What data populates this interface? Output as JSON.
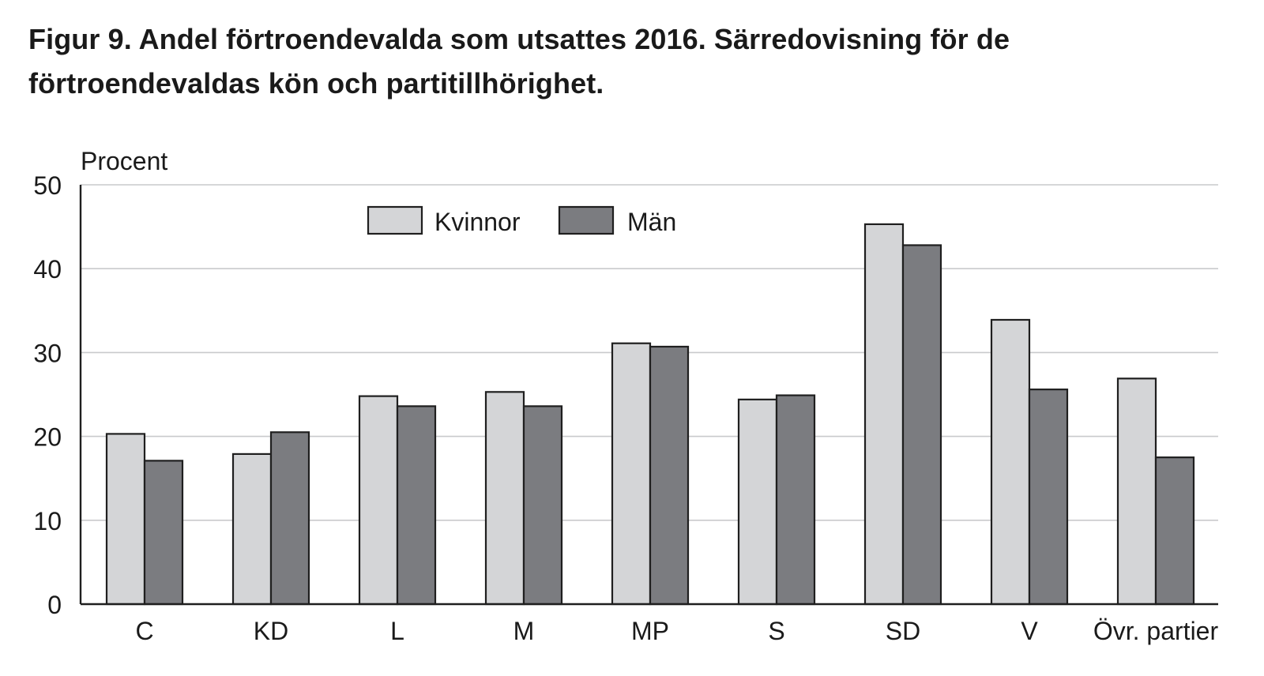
{
  "title_lines": [
    "Figur 9. Andel förtroendevalda som utsattes 2016. Särredovisning för de",
    "förtroendevaldas kön och partitillhörighet."
  ],
  "chart_data": {
    "type": "bar",
    "title": "Figur 9. Andel förtroendevalda som utsattes 2016. Särredovisning för de förtroendevaldas kön och partitillhörighet.",
    "ylabel": "Procent",
    "xlabel": "",
    "ylim": [
      0,
      50
    ],
    "yticks": [
      0,
      10,
      20,
      30,
      40,
      50
    ],
    "grid": true,
    "legend_position": "top-left",
    "categories": [
      "C",
      "KD",
      "L",
      "M",
      "MP",
      "S",
      "SD",
      "V",
      "Övr. partier"
    ],
    "series": [
      {
        "name": "Kvinnor",
        "color": "#d4d5d7",
        "values": [
          20.3,
          17.9,
          24.8,
          25.3,
          31.1,
          24.4,
          45.3,
          33.9,
          26.9
        ]
      },
      {
        "name": "Män",
        "color": "#7b7c80",
        "values": [
          17.1,
          20.5,
          23.6,
          23.6,
          30.7,
          24.9,
          42.8,
          25.6,
          17.5
        ]
      }
    ]
  }
}
